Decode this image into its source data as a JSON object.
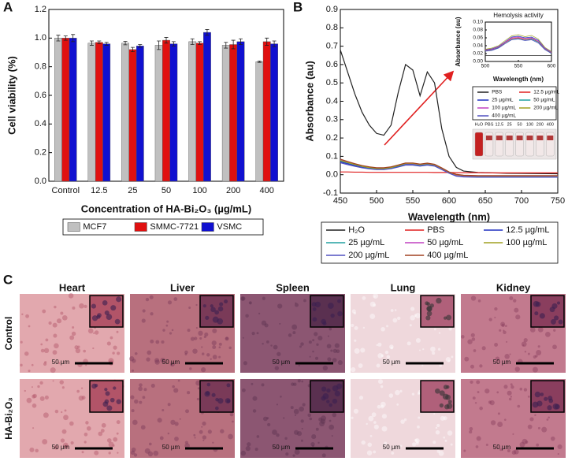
{
  "panel_labels": [
    "A",
    "B",
    "C"
  ],
  "chart_data": [
    {
      "type": "bar",
      "x_label": "Concentration of HA-Bi₂O₃ (µg/mL)",
      "y_label": "Cell viability (%)",
      "categories": [
        "Control",
        "12.5",
        "25",
        "50",
        "100",
        "200",
        "400"
      ],
      "ylim": [
        0,
        1.2
      ],
      "yticks": [
        {
          "value": 0,
          "label": "0.0"
        },
        0.2,
        0.4,
        0.6,
        0.8,
        {
          "value": 1,
          "label": "1.0"
        },
        1.2
      ],
      "grid": false,
      "legend": "bottom",
      "series": [
        {
          "name": "MCF7",
          "color": "#c0c0c0",
          "values": [
            1.0,
            0.965,
            0.965,
            0.95,
            0.975,
            0.95,
            0.835
          ],
          "errors": [
            0.02,
            0.015,
            0.012,
            0.03,
            0.02,
            0.02,
            0.005
          ]
        },
        {
          "name": "SMMC-7721",
          "color": "#e01010",
          "values": [
            1.0,
            0.97,
            0.92,
            0.985,
            0.965,
            0.955,
            0.975
          ],
          "errors": [
            0.015,
            0.01,
            0.015,
            0.02,
            0.01,
            0.03,
            0.025
          ]
        },
        {
          "name": "VSMC",
          "color": "#1010d0",
          "values": [
            1.0,
            0.96,
            0.945,
            0.96,
            1.04,
            0.975,
            0.96
          ],
          "errors": [
            0.025,
            0.01,
            0.01,
            0.015,
            0.02,
            0.02,
            0.02
          ]
        }
      ]
    },
    {
      "type": "line",
      "x_label": "Wavelength (nm)",
      "y_label": "Absorbance (au)",
      "x": [
        450,
        460,
        470,
        480,
        490,
        500,
        510,
        520,
        530,
        540,
        550,
        560,
        570,
        580,
        590,
        600,
        610,
        620,
        640,
        660,
        680,
        700,
        725,
        750
      ],
      "xlim": [
        450,
        750
      ],
      "xticks": [
        450,
        500,
        550,
        600,
        650,
        700,
        750
      ],
      "ylim": [
        -0.1,
        0.9
      ],
      "yticks": [
        -0.1,
        {
          "value": 0,
          "label": "0.0"
        },
        0.1,
        0.2,
        0.3,
        0.4,
        0.5,
        0.6,
        0.7,
        0.8,
        0.9
      ],
      "grid": false,
      "legend": "bottom",
      "series": [
        {
          "name": "H₂O",
          "color": "#202020",
          "values": [
            0.68,
            0.56,
            0.44,
            0.34,
            0.27,
            0.225,
            0.215,
            0.27,
            0.45,
            0.6,
            0.57,
            0.43,
            0.56,
            0.5,
            0.25,
            0.1,
            0.04,
            0.02,
            0.012,
            0.01,
            0.008,
            0.007,
            0.006,
            0.005
          ]
        },
        {
          "name": "PBS",
          "color": "#e02020",
          "values": [
            0.015,
            0.015,
            0.014,
            0.014,
            0.013,
            0.013,
            0.013,
            0.013,
            0.013,
            0.013,
            0.013,
            0.013,
            0.013,
            0.012,
            0.012,
            0.012,
            0.011,
            0.011,
            0.011,
            0.01,
            0.01,
            0.01,
            0.01,
            0.01
          ]
        },
        {
          "name": "12.5 µg/mL",
          "color": "#2030c0",
          "values": [
            0.07,
            0.06,
            0.05,
            0.04,
            0.035,
            0.03,
            0.03,
            0.035,
            0.045,
            0.055,
            0.055,
            0.05,
            0.055,
            0.05,
            0.03,
            0.01,
            -0.005,
            -0.01,
            -0.012,
            -0.012,
            -0.012,
            -0.012,
            -0.012,
            -0.012
          ]
        },
        {
          "name": "25 µg/mL",
          "color": "#20a0a0",
          "values": [
            0.075,
            0.065,
            0.055,
            0.045,
            0.038,
            0.033,
            0.033,
            0.038,
            0.048,
            0.058,
            0.058,
            0.052,
            0.058,
            0.052,
            0.032,
            0.012,
            -0.003,
            -0.008,
            -0.01,
            -0.01,
            -0.01,
            -0.01,
            -0.01,
            -0.01
          ]
        },
        {
          "name": "50 µg/mL",
          "color": "#c040c0",
          "values": [
            0.08,
            0.068,
            0.057,
            0.047,
            0.04,
            0.035,
            0.035,
            0.04,
            0.05,
            0.06,
            0.06,
            0.055,
            0.06,
            0.054,
            0.034,
            0.013,
            -0.002,
            -0.006,
            -0.008,
            -0.008,
            -0.008,
            -0.008,
            -0.008,
            -0.008
          ]
        },
        {
          "name": "100 µg/mL",
          "color": "#a0a020",
          "values": [
            0.078,
            0.066,
            0.056,
            0.046,
            0.039,
            0.034,
            0.034,
            0.039,
            0.05,
            0.062,
            0.062,
            0.056,
            0.061,
            0.055,
            0.035,
            0.014,
            0,
            -0.004,
            -0.006,
            -0.006,
            -0.006,
            -0.006,
            -0.006,
            -0.006
          ]
        },
        {
          "name": "200 µg/mL",
          "color": "#5050c0",
          "values": [
            0.065,
            0.055,
            0.046,
            0.038,
            0.032,
            0.028,
            0.028,
            0.033,
            0.042,
            0.052,
            0.052,
            0.047,
            0.052,
            0.047,
            0.028,
            0.008,
            -0.008,
            -0.012,
            -0.014,
            -0.014,
            -0.014,
            -0.014,
            -0.014,
            -0.014
          ]
        },
        {
          "name": "400 µg/mL",
          "color": "#a04020",
          "values": [
            0.085,
            0.072,
            0.06,
            0.05,
            0.043,
            0.038,
            0.038,
            0.043,
            0.053,
            0.064,
            0.064,
            0.058,
            0.063,
            0.057,
            0.037,
            0.015,
            0.002,
            -0.003,
            -0.005,
            -0.005,
            -0.005,
            -0.005,
            -0.005,
            -0.005
          ]
        }
      ]
    },
    {
      "type": "line",
      "title": "Hemolysis activity",
      "x_label": "Wavelength (nm)",
      "y_label": "Absorbance (au)",
      "x": [
        500,
        510,
        520,
        530,
        540,
        550,
        560,
        570,
        580,
        590,
        600
      ],
      "xlim": [
        500,
        600
      ],
      "xticks": [
        500,
        550,
        600
      ],
      "ylim": [
        0,
        0.1
      ],
      "yticks": [
        {
          "value": 0,
          "label": "0.00"
        },
        0.02,
        0.04,
        0.06,
        0.08,
        {
          "value": 0.1,
          "label": "0.10"
        }
      ],
      "grid": false,
      "legend": "below",
      "series": [
        {
          "name": "PBS",
          "color": "#202020",
          "values": [
            0.015,
            0.015,
            0.015,
            0.015,
            0.015,
            0.015,
            0.015,
            0.015,
            0.015,
            0.015,
            0.015
          ]
        },
        {
          "name": "12.5 µg/mL",
          "color": "#e02020",
          "values": [
            0.028,
            0.03,
            0.036,
            0.048,
            0.058,
            0.06,
            0.056,
            0.058,
            0.05,
            0.032,
            0.022
          ]
        },
        {
          "name": "25 µg/mL",
          "color": "#2030c0",
          "values": [
            0.03,
            0.032,
            0.038,
            0.05,
            0.062,
            0.064,
            0.06,
            0.062,
            0.054,
            0.034,
            0.024
          ]
        },
        {
          "name": "50 µg/mL",
          "color": "#20a0a0",
          "values": [
            0.027,
            0.029,
            0.035,
            0.046,
            0.056,
            0.058,
            0.054,
            0.057,
            0.049,
            0.031,
            0.021
          ]
        },
        {
          "name": "100 µg/mL",
          "color": "#c040c0",
          "values": [
            0.029,
            0.031,
            0.037,
            0.049,
            0.06,
            0.062,
            0.058,
            0.06,
            0.052,
            0.033,
            0.023
          ]
        },
        {
          "name": "200 µg/mL",
          "color": "#a0a020",
          "values": [
            0.031,
            0.034,
            0.04,
            0.053,
            0.065,
            0.068,
            0.063,
            0.066,
            0.057,
            0.036,
            0.025
          ]
        },
        {
          "name": "400 µg/mL",
          "color": "#5050c0",
          "values": [
            0.026,
            0.028,
            0.034,
            0.045,
            0.055,
            0.057,
            0.053,
            0.055,
            0.047,
            0.03,
            0.02
          ]
        }
      ]
    }
  ],
  "vial_labels": [
    "H₂O",
    "PBS",
    "12.5",
    "25",
    "50",
    "100",
    "200",
    "400"
  ],
  "histology": {
    "organs": [
      "Heart",
      "Liver",
      "Spleen",
      "Lung",
      "Kidney"
    ],
    "groups": [
      "Control",
      "HA-Bi₂O₃"
    ],
    "scale_bar": "50 µm"
  }
}
